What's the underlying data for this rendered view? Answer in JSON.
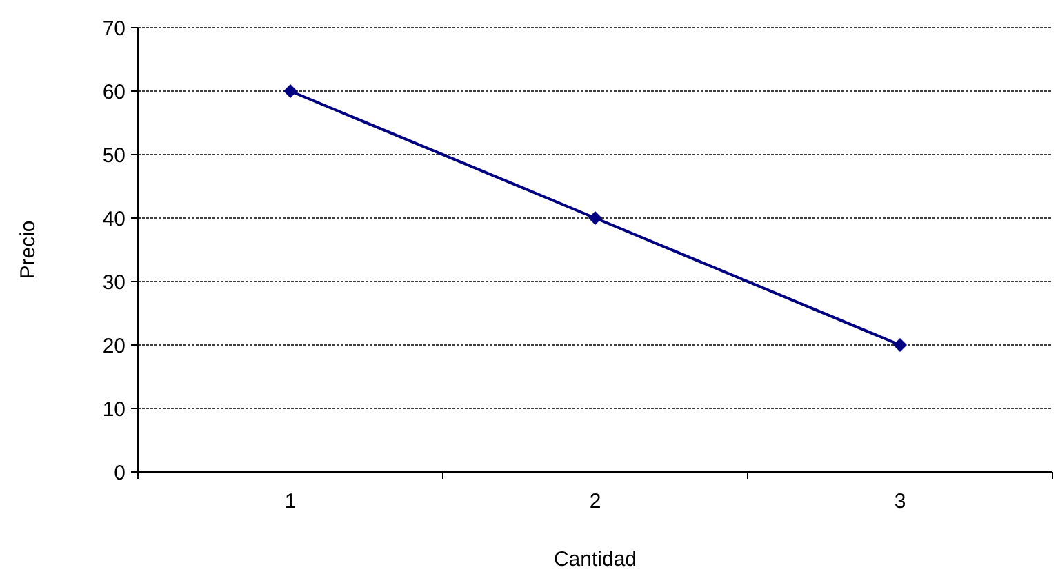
{
  "chart_data": {
    "type": "line",
    "xlabel": "Cantidad",
    "ylabel": "Precio",
    "categories": [
      "1",
      "2",
      "3"
    ],
    "series": [
      {
        "color": "#000080",
        "values": [
          60,
          40,
          20
        ]
      }
    ],
    "ylim": [
      0,
      70
    ],
    "yticks": [
      0,
      10,
      20,
      30,
      40,
      50,
      60,
      70
    ],
    "grid": "y",
    "marker": "diamond",
    "line_style": "solid"
  }
}
